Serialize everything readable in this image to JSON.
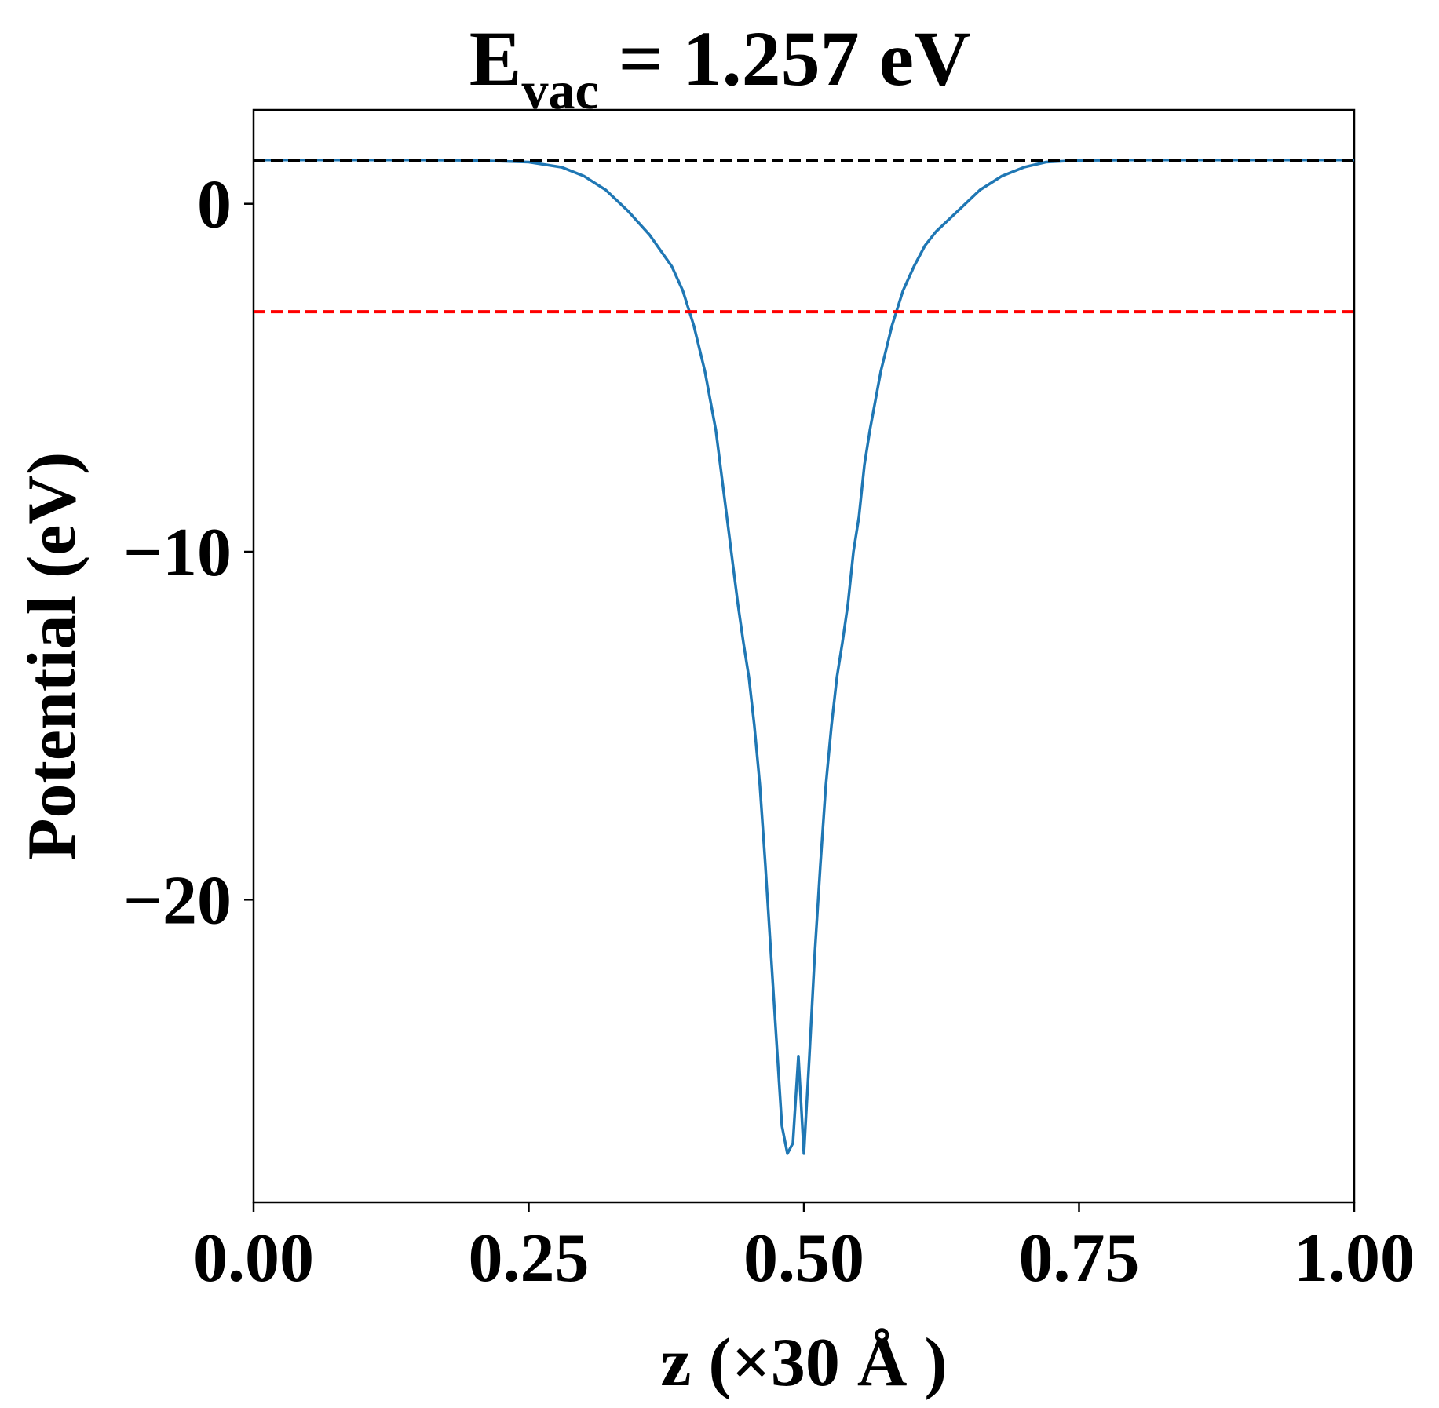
{
  "chart_data": {
    "type": "line",
    "title_main": "E",
    "title_sub": "vac",
    "title_rest": " = 1.257 eV",
    "xlabel": "z (×30 Å )",
    "ylabel": "Potential (eV)",
    "xlim": [
      0,
      1
    ],
    "ylim": [
      -28.7,
      2.7
    ],
    "xticks": [
      0,
      0.25,
      0.5,
      0.75,
      1
    ],
    "xtick_labels": [
      "0.00",
      "0.25",
      "0.50",
      "0.75",
      "1.00"
    ],
    "yticks": [
      0,
      -10,
      -20
    ],
    "ytick_labels": [
      "0",
      "−10",
      "−20"
    ],
    "grid": false,
    "series": [
      {
        "color": "#1f77b4",
        "style": "solid",
        "x": [
          0,
          0.05,
          0.1,
          0.15,
          0.2,
          0.25,
          0.28,
          0.3,
          0.32,
          0.34,
          0.36,
          0.38,
          0.39,
          0.4,
          0.41,
          0.42,
          0.43,
          0.44,
          0.445,
          0.45,
          0.455,
          0.46,
          0.465,
          0.47,
          0.475,
          0.48,
          0.485,
          0.49,
          0.495,
          0.5,
          0.505,
          0.51,
          0.515,
          0.52,
          0.525,
          0.53,
          0.535,
          0.54,
          0.545,
          0.55,
          0.555,
          0.56,
          0.57,
          0.58,
          0.59,
          0.6,
          0.61,
          0.62,
          0.64,
          0.66,
          0.68,
          0.7,
          0.72,
          0.75,
          0.8,
          0.85,
          0.9,
          0.95,
          1.0
        ],
        "y": [
          1.26,
          1.26,
          1.26,
          1.26,
          1.25,
          1.2,
          1.05,
          0.8,
          0.4,
          -0.2,
          -0.9,
          -1.8,
          -2.5,
          -3.5,
          -4.8,
          -6.5,
          -9.0,
          -11.5,
          -12.6,
          -13.6,
          -15.0,
          -16.7,
          -19.0,
          -21.5,
          -24.0,
          -26.5,
          -27.3,
          -27.0,
          -24.5,
          -27.3,
          -24.5,
          -21.5,
          -19.0,
          -16.7,
          -15.0,
          -13.6,
          -12.6,
          -11.5,
          -10.0,
          -9.0,
          -7.5,
          -6.5,
          -4.8,
          -3.5,
          -2.5,
          -1.8,
          -1.2,
          -0.8,
          -0.2,
          0.4,
          0.8,
          1.05,
          1.2,
          1.25,
          1.26,
          1.26,
          1.26,
          1.26,
          1.26
        ]
      },
      {
        "color": "#000000",
        "style": "dashed",
        "x": [
          0,
          1
        ],
        "y": [
          1.257,
          1.257
        ]
      },
      {
        "color": "#ff0000",
        "style": "dashed",
        "x": [
          0,
          1
        ],
        "y": [
          -3.1,
          -3.1
        ]
      }
    ]
  }
}
